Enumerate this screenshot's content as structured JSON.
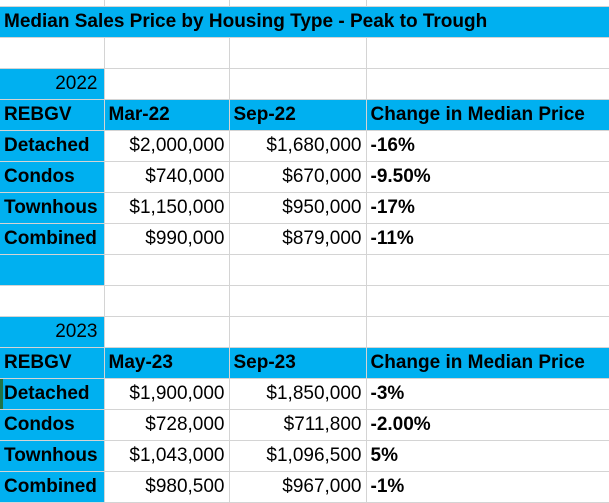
{
  "title": "Median Sales Price by Housing Type - Peak to Trough",
  "table_2022": {
    "year": "2022",
    "headers": [
      "REBGV",
      "Mar-22",
      "Sep-22",
      "Change in Median Price"
    ],
    "rows": [
      {
        "type": "Detached",
        "start": "$2,000,000",
        "end": "$1,680,000",
        "change": "-16%"
      },
      {
        "type": "Condos",
        "start": "$740,000",
        "end": "$670,000",
        "change": "-9.50%"
      },
      {
        "type": "Townhous",
        "start": "$1,150,000",
        "end": "$950,000",
        "change": "-17%"
      },
      {
        "type": "Combined",
        "start": "$990,000",
        "end": "$879,000",
        "change": "-11%"
      }
    ]
  },
  "table_2023": {
    "year": "2023",
    "headers": [
      "REBGV",
      "May-23",
      "Sep-23",
      "Change in Median Price"
    ],
    "rows": [
      {
        "type": "Detached",
        "start": "$1,900,000",
        "end": "$1,850,000",
        "change": "-3%"
      },
      {
        "type": "Condos",
        "start": "$728,000",
        "end": "$711,800",
        "change": "-2.00%"
      },
      {
        "type": "Townhous",
        "start": "$1,043,000",
        "end": "$1,096,500",
        "change": "5%"
      },
      {
        "type": "Combined",
        "start": "$980,500",
        "end": "$967,000",
        "change": "-1%"
      }
    ]
  },
  "colors": {
    "header_fill": "#00b0f0",
    "negative": "#c00000",
    "positive": "#c00000",
    "grid": "#d4d4d4"
  }
}
